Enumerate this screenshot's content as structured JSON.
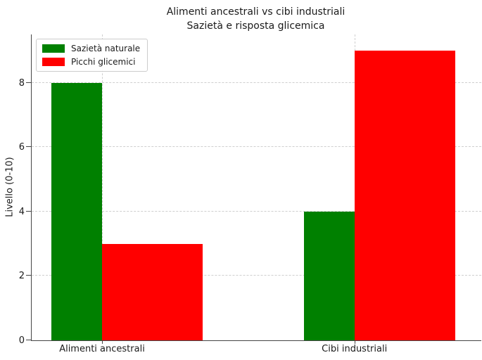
{
  "chart_data": {
    "type": "bar",
    "title": "Alimenti ancestrali vs cibi industriali",
    "subtitle": "Sazietà e risposta glicemica",
    "categories": [
      "Alimenti ancestrali",
      "Cibi industriali"
    ],
    "series": [
      {
        "name": "Sazietà naturale",
        "color": "#008000",
        "values": [
          8,
          4
        ]
      },
      {
        "name": "Picchi glicemici",
        "color": "#ff0000",
        "values": [
          3,
          9
        ]
      }
    ],
    "xlabel": "",
    "ylabel": "Livello (0-10)",
    "ylim": [
      0,
      9.5
    ],
    "yticks": [
      0,
      2,
      4,
      6,
      8
    ],
    "grid": "dashed",
    "grid_color": "#cfcfcf",
    "legend_position": "upper left"
  }
}
